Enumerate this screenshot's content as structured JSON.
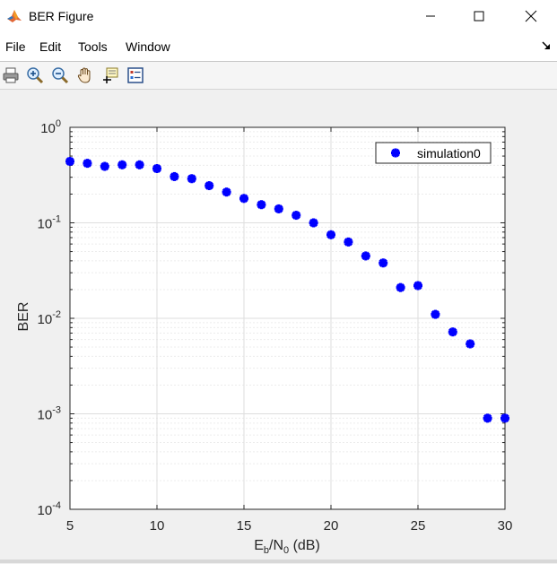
{
  "window": {
    "title": "BER Figure",
    "minimize_icon": "minimize-icon",
    "maximize_icon": "maximize-icon",
    "close_icon": "close-icon"
  },
  "menubar": {
    "items": [
      "File",
      "Edit",
      "Tools",
      "Window"
    ]
  },
  "toolbar": {
    "buttons": [
      "print-icon",
      "zoom-in-icon",
      "zoom-out-icon",
      "pan-hand-icon",
      "data-cursor-icon",
      "legend-icon"
    ]
  },
  "colors": {
    "marker": "#0000ff",
    "grid": "#e2e2e2",
    "axes": "#262626"
  },
  "chart_data": {
    "type": "scatter",
    "title": "",
    "xlabel_main": "E",
    "xlabel_sub1": "b",
    "xlabel_mid": "/N",
    "xlabel_sub2": "0",
    "xlabel_tail": " (dB)",
    "ylabel": "BER",
    "xlim": [
      5,
      30
    ],
    "ylim": [
      0.0001,
      1
    ],
    "yscale": "log",
    "grid": true,
    "legend_position": "top-right",
    "x_ticks": [
      "5",
      "10",
      "15",
      "20",
      "25",
      "30"
    ],
    "y_tick_base": "10",
    "y_tick_exponents": [
      "0",
      "-1",
      "-2",
      "-3",
      "-4"
    ],
    "series": [
      {
        "name": "simulation0",
        "marker": "asterisk",
        "color": "#0000ff",
        "x": [
          5,
          6,
          7,
          8,
          9,
          10,
          11,
          12,
          13,
          14,
          15,
          16,
          17,
          18,
          19,
          20,
          21,
          22,
          23,
          24,
          25,
          26,
          27,
          28,
          29,
          30
        ],
        "y": [
          0.44,
          0.42,
          0.39,
          0.405,
          0.405,
          0.37,
          0.305,
          0.29,
          0.245,
          0.21,
          0.18,
          0.155,
          0.14,
          0.12,
          0.1,
          0.075,
          0.063,
          0.045,
          0.038,
          0.021,
          0.022,
          0.011,
          0.0072,
          0.0054,
          0.0009,
          0.0009
        ]
      }
    ]
  }
}
